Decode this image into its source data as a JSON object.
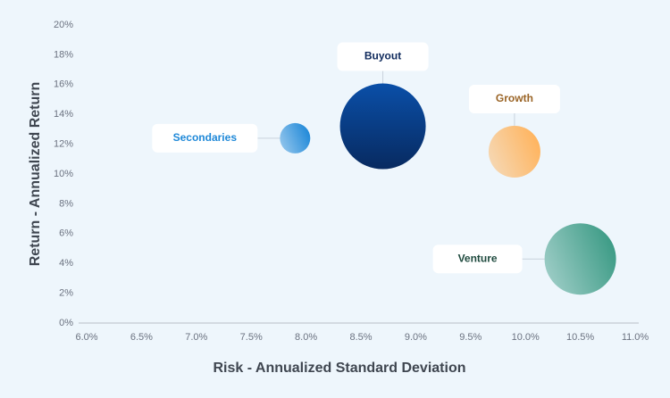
{
  "chart_data": {
    "type": "bubble",
    "xlabel": "Risk - Annualized Standard Deviation",
    "ylabel": "Return - Annualized Return",
    "xlim": [
      6.0,
      11.0
    ],
    "ylim": [
      0,
      20
    ],
    "xticks": [
      {
        "value": 6.0,
        "label": "6.0%"
      },
      {
        "value": 6.5,
        "label": "6.5%"
      },
      {
        "value": 7.0,
        "label": "7.0%"
      },
      {
        "value": 7.5,
        "label": "7.5%"
      },
      {
        "value": 8.0,
        "label": "8.0%"
      },
      {
        "value": 8.5,
        "label": "8.5%"
      },
      {
        "value": 9.0,
        "label": "9.0%"
      },
      {
        "value": 9.5,
        "label": "9.5%"
      },
      {
        "value": 10.0,
        "label": "10.0%"
      },
      {
        "value": 10.5,
        "label": "10.5%"
      },
      {
        "value": 11.0,
        "label": "11.0%"
      }
    ],
    "yticks": [
      {
        "value": 0,
        "label": "0%"
      },
      {
        "value": 2,
        "label": "2%"
      },
      {
        "value": 4,
        "label": "4%"
      },
      {
        "value": 6,
        "label": "6%"
      },
      {
        "value": 8,
        "label": "8%"
      },
      {
        "value": 10,
        "label": "10%"
      },
      {
        "value": 12,
        "label": "12%"
      },
      {
        "value": 14,
        "label": "14%"
      },
      {
        "value": 16,
        "label": "16%"
      },
      {
        "value": 18,
        "label": "18%"
      },
      {
        "value": 20,
        "label": "20%"
      }
    ],
    "series": [
      {
        "name": "Secondaries",
        "color": "#1e88d8",
        "x": [
          7.9
        ],
        "values": [
          12.4
        ],
        "sizes": [
          17
        ]
      },
      {
        "name": "Buyout",
        "color": "#0a4fa8",
        "x": [
          8.7
        ],
        "values": [
          13.2
        ],
        "sizes": [
          48
        ]
      },
      {
        "name": "Growth",
        "color": "#ffb35c",
        "x": [
          9.9
        ],
        "values": [
          11.5
        ],
        "sizes": [
          29
        ]
      },
      {
        "name": "Venture",
        "color": "#3a9a84",
        "x": [
          10.5
        ],
        "values": [
          4.3
        ],
        "sizes": [
          40
        ]
      }
    ]
  }
}
